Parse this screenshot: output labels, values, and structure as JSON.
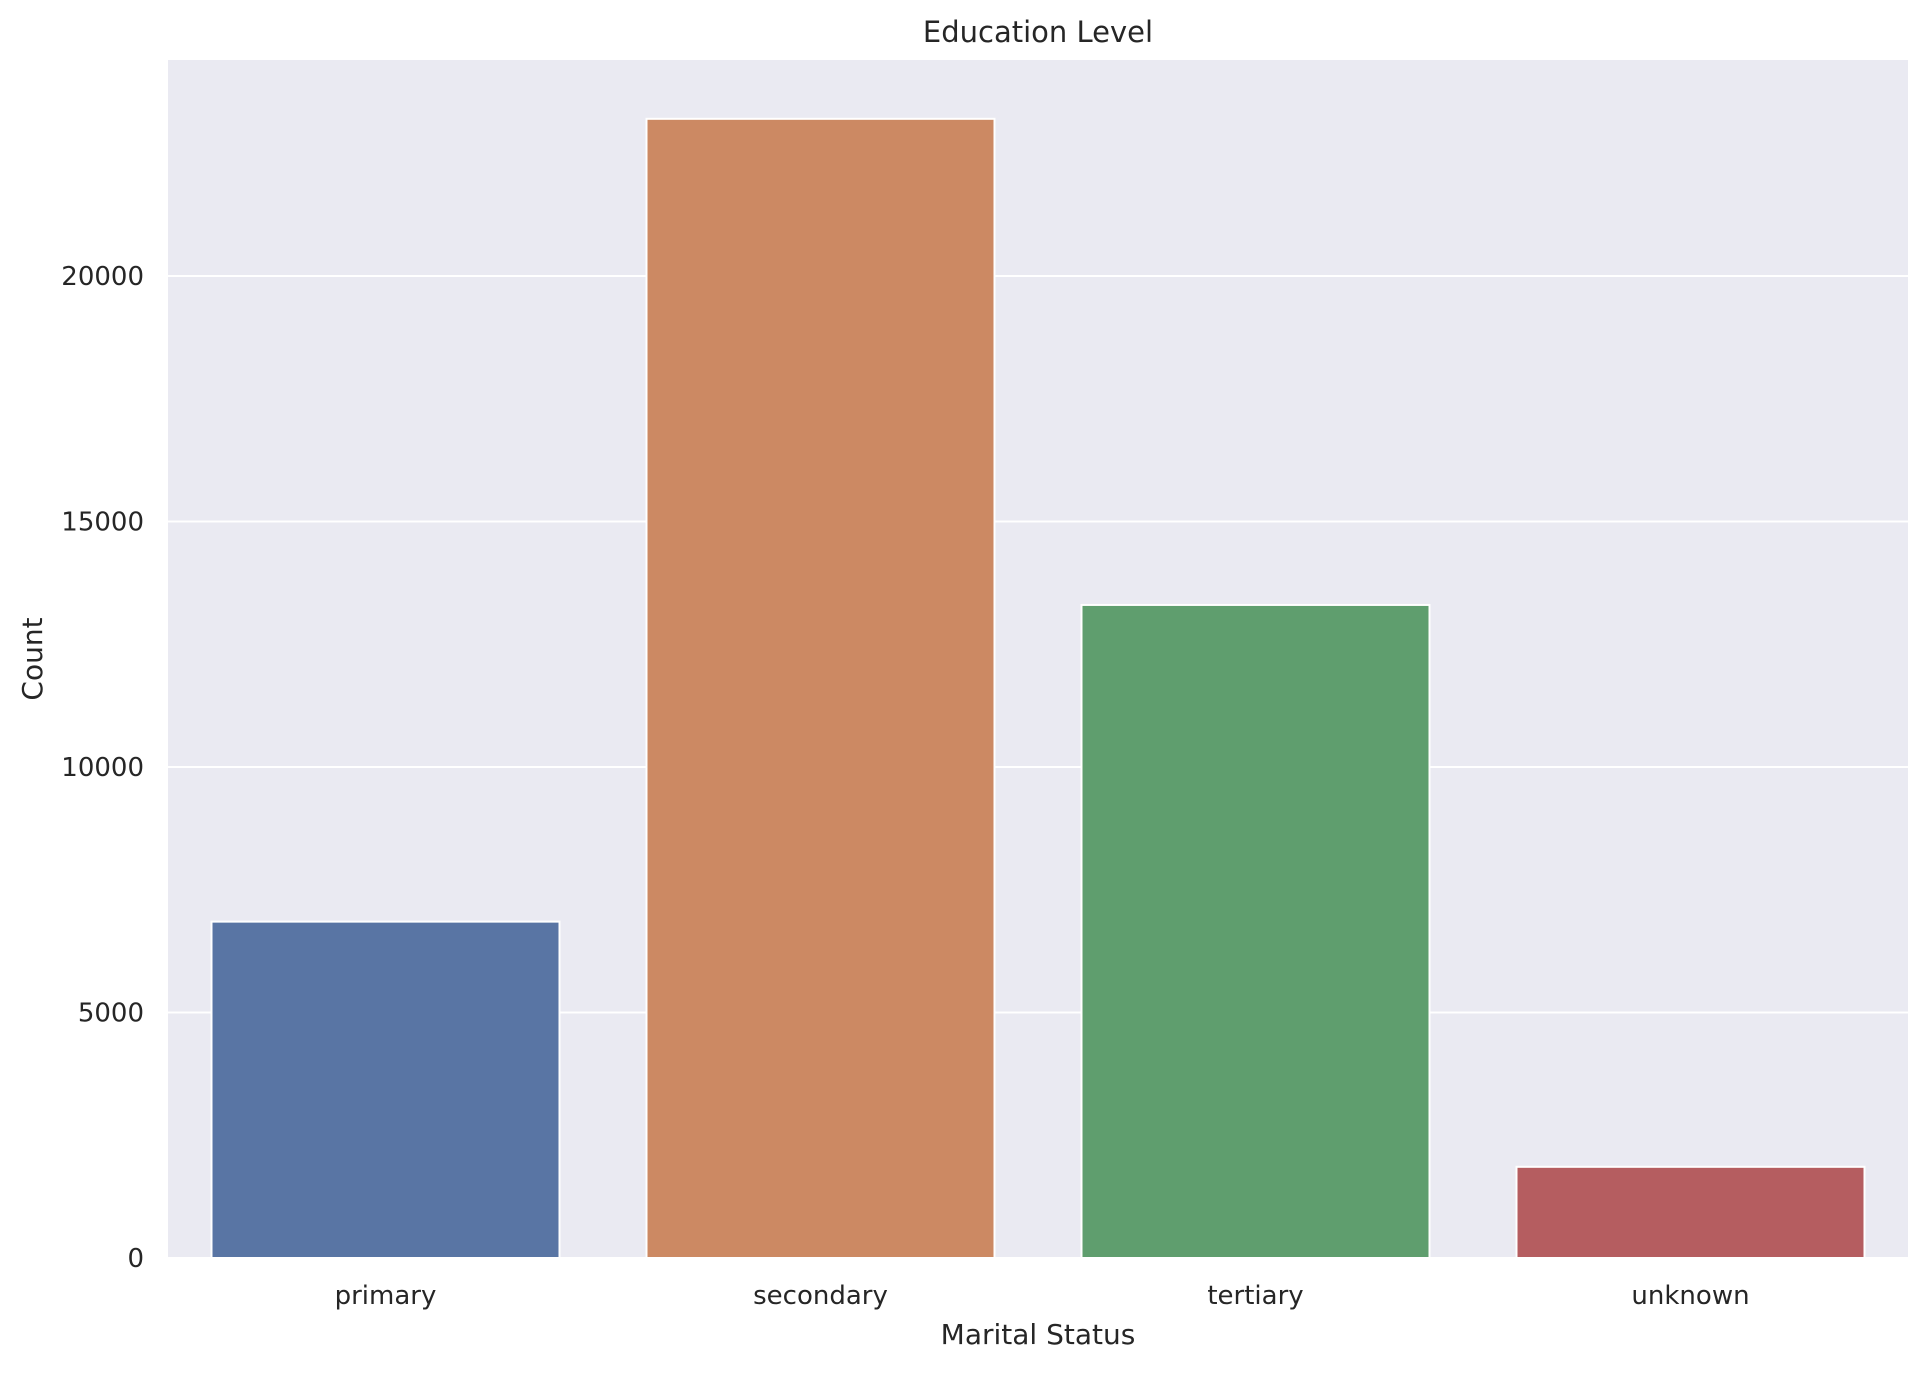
{
  "chart_data": {
    "type": "bar",
    "title": "Education Level",
    "xlabel": "Marital Status",
    "ylabel": "Count",
    "categories": [
      "primary",
      "secondary",
      "tertiary",
      "unknown"
    ],
    "values": [
      6851,
      23202,
      13301,
      1857
    ],
    "colors": [
      "#5975a4",
      "#cc8963",
      "#5f9e6e",
      "#b55d60"
    ],
    "yticks": [
      0,
      5000,
      10000,
      15000,
      20000
    ],
    "ylim": [
      0,
      24400
    ],
    "grid": true,
    "background": "#eaeaf2",
    "legend": "none"
  }
}
